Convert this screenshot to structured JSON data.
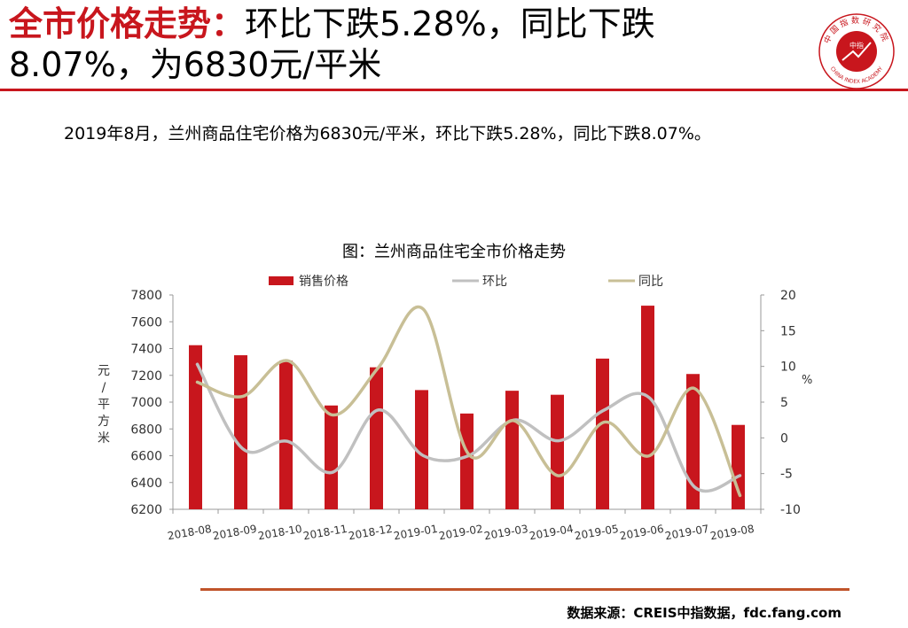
{
  "header": {
    "title_part1": "全市价格走势：",
    "title_part2": "环比下跌5.28%，同比下跌",
    "title_part3": "8.07%，为6830元/平米"
  },
  "summary": "2019年8月，兰州商品住宅价格为6830元/平米，环比下跌5.28%，同比下跌8.07%。",
  "source": "数据来源：CREIS中指数据，fdc.fang.com",
  "logo": {
    "outer_text": "中国指数研究院",
    "inner_text": "中指",
    "english_text": "CHINA INDEX ACADEMY"
  },
  "chart_data": {
    "type": "bar",
    "title": "图：兰州商品住宅全市价格走势",
    "categories": [
      "2018-08",
      "2018-09",
      "2018-10",
      "2018-11",
      "2018-12",
      "2019-01",
      "2019-02",
      "2019-03",
      "2019-04",
      "2019-05",
      "2019-06",
      "2019-07",
      "2019-08"
    ],
    "series": [
      {
        "name": "销售价格",
        "type": "bar",
        "axis": "left",
        "color": "#c8161d",
        "values": [
          7425,
          7350,
          7310,
          6975,
          7260,
          7090,
          6915,
          7085,
          7055,
          7325,
          7720,
          7210,
          6830
        ]
      },
      {
        "name": "环比",
        "type": "line",
        "axis": "right",
        "color": "#c0c0c0",
        "values": [
          10.3,
          -1.5,
          -0.5,
          -4.8,
          3.9,
          -2.5,
          -2.5,
          2.5,
          -0.4,
          3.9,
          5.6,
          -6.9,
          -5.28
        ]
      },
      {
        "name": "同比",
        "type": "line",
        "axis": "right",
        "color": "#c8bf96",
        "values": [
          7.8,
          5.8,
          10.8,
          3.2,
          9.8,
          18.0,
          -2.3,
          2.4,
          -5.3,
          2.2,
          -2.5,
          6.9,
          -8.07
        ]
      }
    ],
    "ylabel": "元/平方米",
    "y2label": "%",
    "ylim": [
      6200,
      7800
    ],
    "y2lim": [
      -10,
      20
    ],
    "yticks": [
      "6200",
      "6400",
      "6600",
      "6800",
      "7000",
      "7200",
      "7400",
      "7600",
      "7800"
    ],
    "y2ticks": [
      "-10",
      "-5",
      "0",
      "5",
      "10",
      "15",
      "20"
    ],
    "legend_position": "top",
    "grid": false
  }
}
